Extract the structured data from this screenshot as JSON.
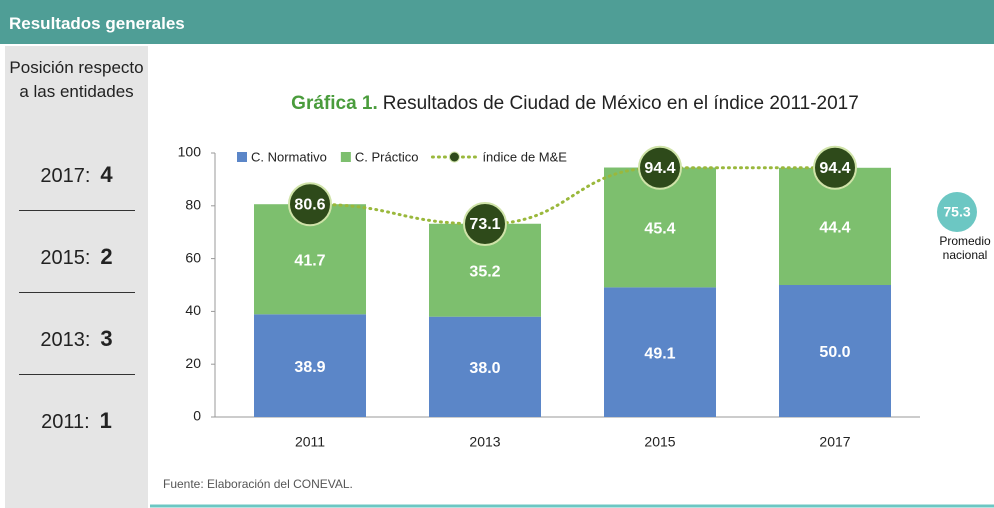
{
  "header": "Resultados generales",
  "side": {
    "title": "Posición respecto a las entidades",
    "rankings": [
      {
        "year": "2017:",
        "rank": 4
      },
      {
        "year": "2015:",
        "rank": 2
      },
      {
        "year": "2013:",
        "rank": 3
      },
      {
        "year": "2011:",
        "rank": 1
      }
    ]
  },
  "chart_data": {
    "type": "bar",
    "stacked": true,
    "title_label": "Gráfica 1.",
    "title": "Resultados de Ciudad de México en el índice 2011-2017",
    "categories": [
      "2011",
      "2013",
      "2015",
      "2017"
    ],
    "series": [
      {
        "name": "C. Normativo",
        "color": "#5b86c8",
        "values": [
          38.9,
          38.0,
          49.1,
          50.0
        ],
        "value_labels": [
          "38.9",
          "38.0",
          "49.1",
          "50.0"
        ]
      },
      {
        "name": "C. Práctico",
        "color": "#7dbf6e",
        "values": [
          41.7,
          35.2,
          45.4,
          44.4
        ],
        "value_labels": [
          "41.7",
          "35.2",
          "45.4",
          "44.4"
        ]
      },
      {
        "name": "índice de M&E",
        "type": "line",
        "color": "#2e4a1a",
        "line_color": "#9ab83c",
        "values": [
          80.6,
          73.1,
          94.4,
          94.4
        ],
        "value_labels": [
          "80.6",
          "73.1",
          "94.4",
          "94.4"
        ]
      }
    ],
    "ylim": [
      0,
      100
    ],
    "yticks": [
      0,
      20,
      40,
      60,
      80,
      100
    ],
    "national_average": {
      "value": 75.3,
      "label": "Promedio nacional"
    },
    "source": "Fuente: Elaboración del CONEVAL."
  }
}
